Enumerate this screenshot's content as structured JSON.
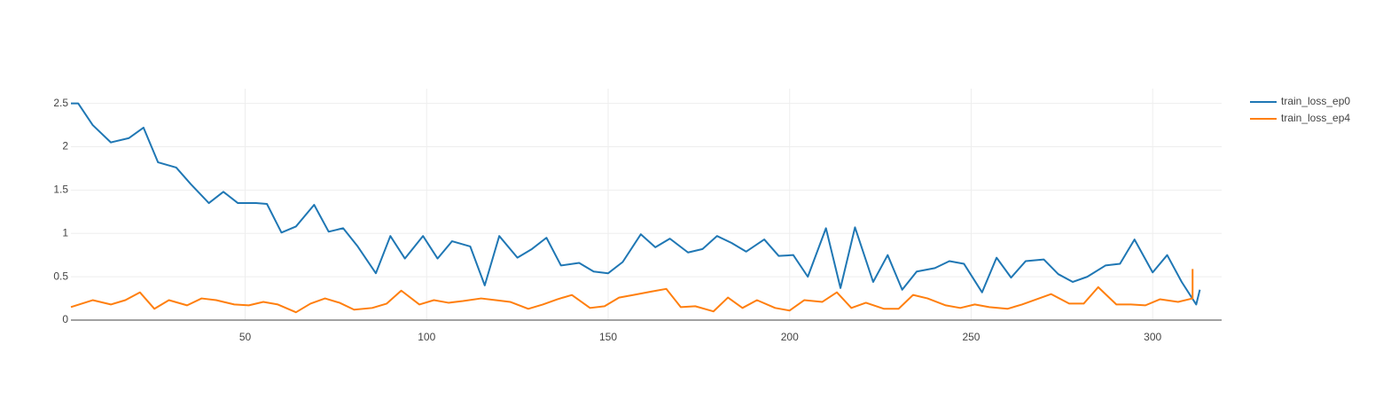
{
  "chart_data": {
    "type": "line",
    "xlim": [
      2,
      319
    ],
    "ylim": [
      0,
      2.67
    ],
    "xticks": [
      50,
      100,
      150,
      200,
      250,
      300
    ],
    "yticks": [
      0,
      0.5,
      1,
      1.5,
      2,
      2.5
    ],
    "grid": true,
    "legend": "right",
    "series": [
      {
        "name": "train_loss_ep0",
        "color": "#1f77b4",
        "x": [
          2,
          4,
          8,
          13,
          18,
          22,
          26,
          31,
          35,
          40,
          44,
          48,
          53,
          56,
          60,
          64,
          69,
          73,
          77,
          81,
          86,
          90,
          94,
          99,
          103,
          107,
          112,
          116,
          120,
          125,
          129,
          133,
          137,
          142,
          146,
          150,
          154,
          159,
          163,
          167,
          172,
          176,
          180,
          184,
          188,
          193,
          197,
          201,
          205,
          210,
          214,
          218,
          223,
          227,
          231,
          235,
          240,
          244,
          248,
          253,
          257,
          261,
          265,
          270,
          274,
          278,
          282,
          287,
          291,
          295,
          300,
          304,
          308,
          312,
          313
        ],
        "values": [
          2.5,
          2.5,
          2.25,
          2.05,
          2.1,
          2.22,
          1.82,
          1.76,
          1.57,
          1.35,
          1.48,
          1.35,
          1.35,
          1.34,
          1.01,
          1.08,
          1.33,
          1.02,
          1.06,
          0.85,
          0.54,
          0.97,
          0.71,
          0.97,
          0.71,
          0.91,
          0.85,
          0.4,
          0.97,
          0.72,
          0.82,
          0.95,
          0.63,
          0.66,
          0.56,
          0.54,
          0.67,
          0.99,
          0.84,
          0.94,
          0.78,
          0.82,
          0.97,
          0.89,
          0.79,
          0.93,
          0.74,
          0.75,
          0.5,
          1.06,
          0.37,
          1.07,
          0.44,
          0.75,
          0.35,
          0.56,
          0.6,
          0.68,
          0.65,
          0.32,
          0.72,
          0.49,
          0.68,
          0.7,
          0.53,
          0.44,
          0.5,
          0.63,
          0.65,
          0.93,
          0.55,
          0.75,
          0.44,
          0.18,
          0.35
        ]
      },
      {
        "name": "train_loss_ep4",
        "color": "#ff7f0e",
        "x": [
          2,
          8,
          13,
          17,
          21,
          25,
          29,
          34,
          38,
          42,
          47,
          51,
          55,
          59,
          64,
          68,
          72,
          76,
          80,
          85,
          89,
          93,
          98,
          102,
          106,
          110,
          115,
          119,
          123,
          128,
          132,
          136,
          140,
          145,
          149,
          153,
          157,
          162,
          166,
          170,
          174,
          179,
          183,
          187,
          191,
          196,
          200,
          204,
          209,
          213,
          217,
          221,
          226,
          230,
          234,
          238,
          243,
          247,
          251,
          255,
          260,
          264,
          268,
          272,
          277,
          281,
          285,
          290,
          294,
          298,
          302,
          307,
          311,
          311
        ],
        "values": [
          0.15,
          0.23,
          0.18,
          0.23,
          0.32,
          0.13,
          0.23,
          0.17,
          0.25,
          0.23,
          0.18,
          0.17,
          0.21,
          0.18,
          0.09,
          0.19,
          0.25,
          0.2,
          0.12,
          0.14,
          0.19,
          0.34,
          0.18,
          0.23,
          0.2,
          0.22,
          0.25,
          0.23,
          0.21,
          0.13,
          0.18,
          0.24,
          0.29,
          0.14,
          0.16,
          0.26,
          0.29,
          0.33,
          0.36,
          0.15,
          0.16,
          0.1,
          0.26,
          0.14,
          0.23,
          0.14,
          0.11,
          0.23,
          0.21,
          0.32,
          0.14,
          0.2,
          0.13,
          0.13,
          0.29,
          0.25,
          0.17,
          0.14,
          0.18,
          0.15,
          0.13,
          0.18,
          0.24,
          0.3,
          0.19,
          0.19,
          0.38,
          0.18,
          0.18,
          0.17,
          0.24,
          0.21,
          0.25,
          0.59
        ]
      }
    ]
  }
}
